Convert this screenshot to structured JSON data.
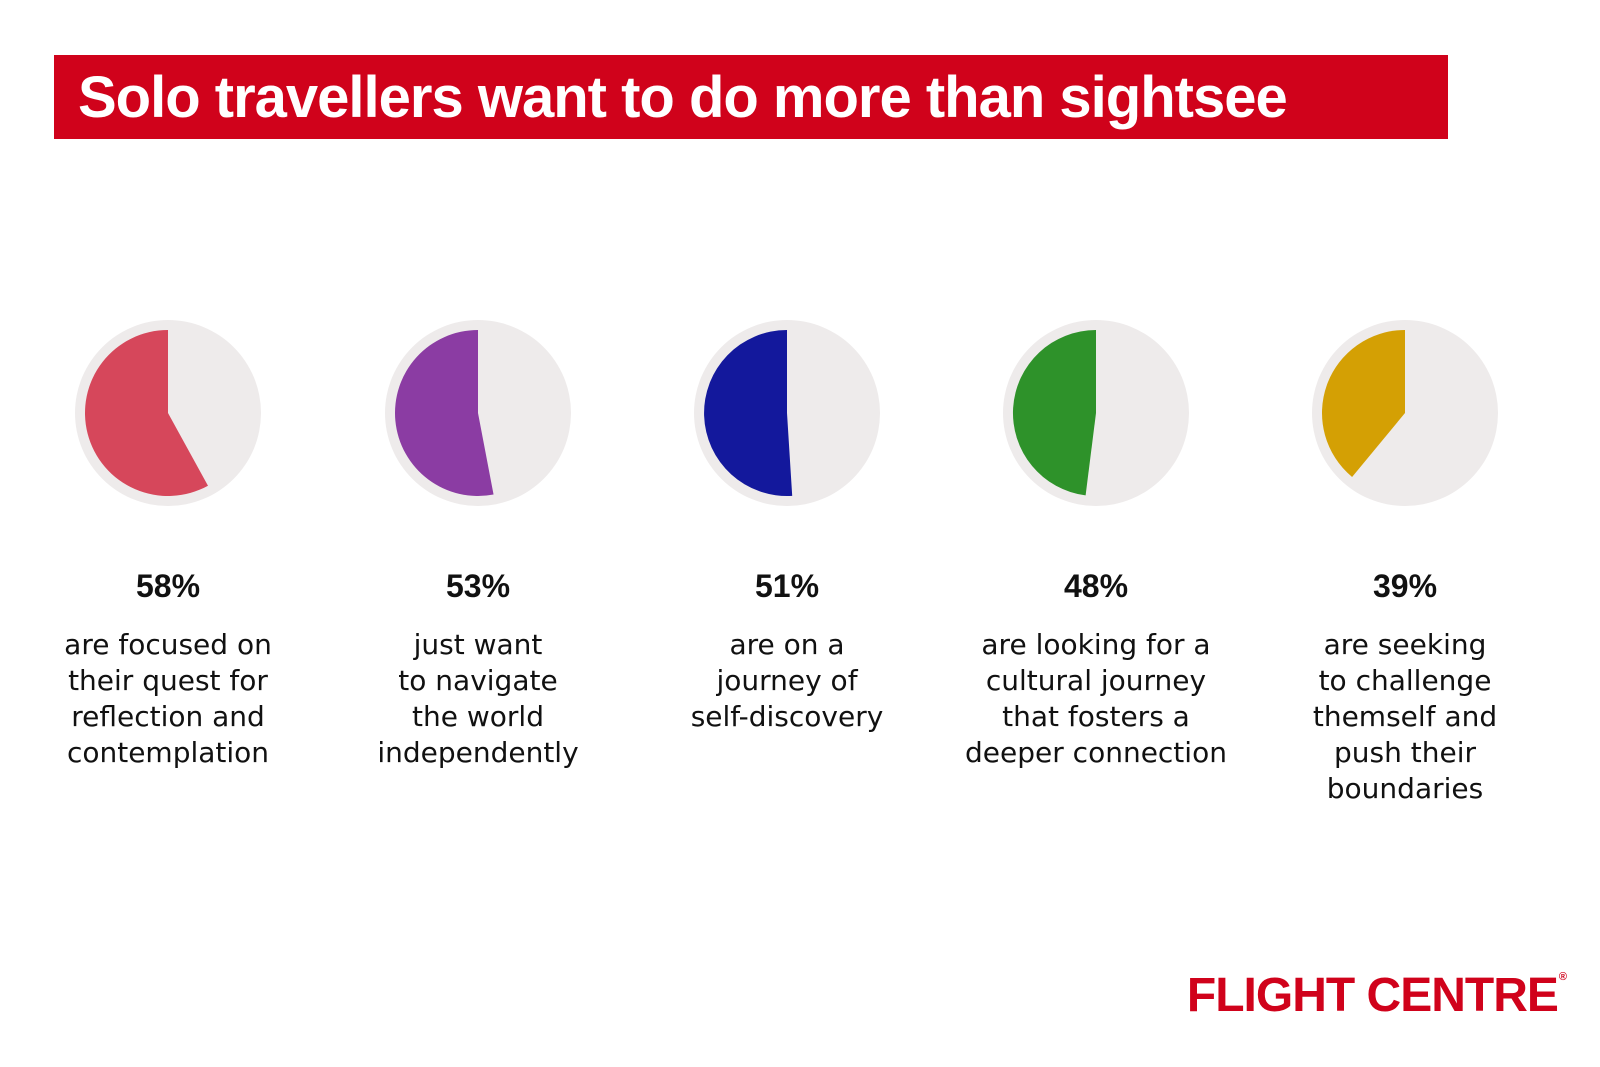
{
  "header": {
    "title": "Solo travellers want to do more than sightsee"
  },
  "colors": {
    "brand": "#d0021b",
    "pie_background": "#eeebeb",
    "series": [
      "#d6475b",
      "#8b3ca3",
      "#13189c",
      "#2e922a",
      "#d4a004"
    ]
  },
  "chart_data": {
    "type": "pie",
    "title": "Solo travellers want to do more than sightsee",
    "unit": "%",
    "items": [
      {
        "value": 58,
        "label": "58%",
        "description": [
          "are focused on",
          "their quest for",
          "reflection and",
          "contemplation"
        ],
        "color": "#d6475b"
      },
      {
        "value": 53,
        "label": "53%",
        "description": [
          "just want",
          "to navigate",
          "the world",
          "independently"
        ],
        "color": "#8b3ca3"
      },
      {
        "value": 51,
        "label": "51%",
        "description": [
          "are on a",
          "journey of",
          "self-discovery"
        ],
        "color": "#13189c"
      },
      {
        "value": 48,
        "label": "48%",
        "description": [
          "are looking for a",
          "cultural journey",
          "that fosters a",
          "deeper connection"
        ],
        "color": "#2e922a"
      },
      {
        "value": 39,
        "label": "39%",
        "description": [
          "are seeking",
          "to challenge",
          "themself and",
          "push their",
          "boundaries"
        ],
        "color": "#d4a004"
      }
    ]
  },
  "logo": {
    "text": "FLIGHT CENTRE",
    "registered_mark": "®"
  }
}
